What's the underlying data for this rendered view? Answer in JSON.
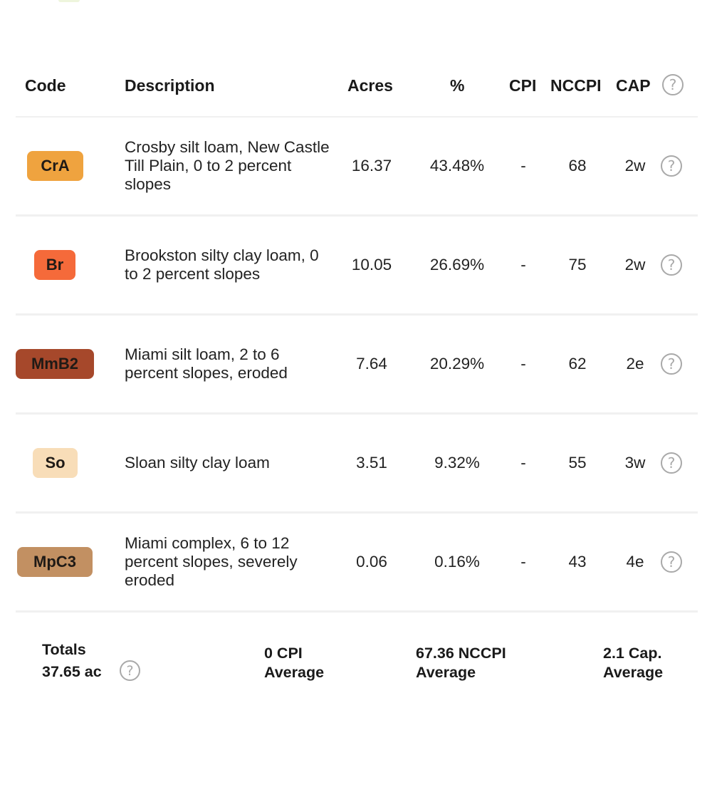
{
  "table": {
    "headers": {
      "code": "Code",
      "description": "Description",
      "acres": "Acres",
      "percent": "%",
      "cpi": "CPI",
      "nccpi": "NCCPI",
      "cap": "CAP"
    },
    "help_glyph": "?",
    "rows": [
      {
        "code": "CrA",
        "color": "#efa33f",
        "description": "Crosby silt loam, New Castle Till Plain, 0 to 2 percent slopes",
        "acres": "16.37",
        "percent": "43.48%",
        "cpi": "-",
        "nccpi": "68",
        "cap": "2w"
      },
      {
        "code": "Br",
        "color": "#f56a3a",
        "description": "Brookston silty clay loam, 0 to 2 percent slopes",
        "acres": "10.05",
        "percent": "26.69%",
        "cpi": "-",
        "nccpi": "75",
        "cap": "2w"
      },
      {
        "code": "MmB2",
        "color": "#a6482b",
        "description": "Miami silt loam, 2 to 6 percent slopes, eroded",
        "acres": "7.64",
        "percent": "20.29%",
        "cpi": "-",
        "nccpi": "62",
        "cap": "2e"
      },
      {
        "code": "So",
        "color": "#f8ddb8",
        "description": "Sloan silty clay loam",
        "acres": "3.51",
        "percent": "9.32%",
        "cpi": "-",
        "nccpi": "55",
        "cap": "3w"
      },
      {
        "code": "MpC3",
        "color": "#c29062",
        "description": "Miami complex, 6 to 12 percent slopes, severely eroded",
        "acres": "0.06",
        "percent": "0.16%",
        "cpi": "-",
        "nccpi": "43",
        "cap": "4e"
      }
    ]
  },
  "totals": {
    "label": "Totals",
    "acres": "37.65 ac",
    "cpi_value": "0 CPI",
    "cpi_suffix": "Average",
    "nccpi_value": "67.36 NCCPI",
    "nccpi_suffix": "Average",
    "cap_value": "2.1 Cap.",
    "cap_suffix": "Average"
  }
}
